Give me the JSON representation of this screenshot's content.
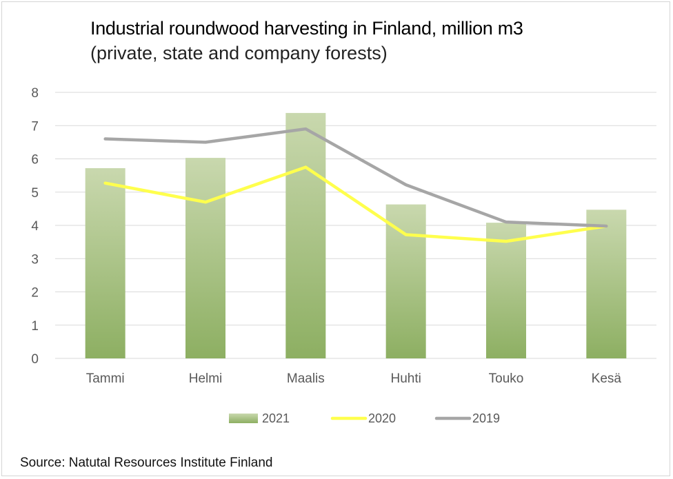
{
  "title": "Industrial roundwood harvesting in Finland, million m3",
  "subtitle": "(private, state and company forests)",
  "source": "Source: Natutal Resources Institute Finland",
  "colors": {
    "bar_top": "#c9d8ae",
    "bar_bottom": "#8daf62",
    "series_2020": "#ffff4d",
    "series_2019": "#a6a6a6",
    "grid": "#d9d9d9"
  },
  "chart_data": {
    "type": "bar",
    "categories": [
      "Tammi",
      "Helmi",
      "Maalis",
      "Huhti",
      "Touko",
      "Kesä"
    ],
    "ylim": [
      0,
      8
    ],
    "yticks": [
      0,
      1,
      2,
      3,
      4,
      5,
      6,
      7,
      8
    ],
    "grid": true,
    "legend_position": "bottom",
    "series": [
      {
        "name": "2021",
        "type": "bar",
        "values": [
          5.72,
          6.03,
          7.38,
          4.63,
          4.08,
          4.47
        ]
      },
      {
        "name": "2020",
        "type": "line",
        "values": [
          5.27,
          4.7,
          5.75,
          3.72,
          3.52,
          3.98
        ]
      },
      {
        "name": "2019",
        "type": "line",
        "values": [
          6.6,
          6.5,
          6.9,
          5.22,
          4.1,
          3.98
        ]
      }
    ]
  }
}
